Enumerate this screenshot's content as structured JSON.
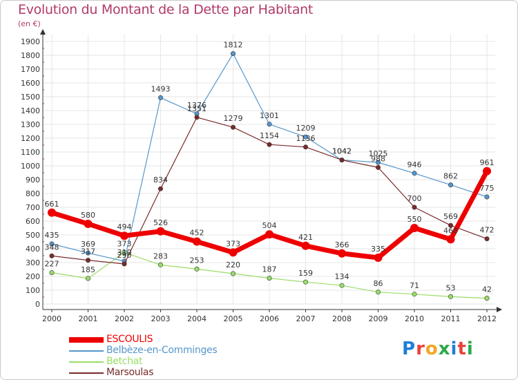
{
  "title": "Evolution du Montant de la Dette par Habitant",
  "subtitle": "(en €)",
  "logo": "Proxiti",
  "chart_data": {
    "type": "line",
    "x": [
      "2000",
      "2001",
      "2002",
      "2003",
      "2004",
      "2005",
      "2006",
      "2007",
      "2008",
      "2009",
      "2010",
      "2011",
      "2012"
    ],
    "ylim": [
      0,
      1900
    ],
    "yticks": [
      0,
      100,
      200,
      300,
      400,
      500,
      600,
      700,
      800,
      900,
      1000,
      1100,
      1200,
      1300,
      1400,
      1500,
      1600,
      1700,
      1800,
      1900
    ],
    "grid": true,
    "legend_position": "bottom-left",
    "series": [
      {
        "name": "ESCOULIS",
        "color": "#ee0000",
        "values": [
          661,
          580,
          494,
          526,
          452,
          373,
          504,
          421,
          366,
          335,
          550,
          468,
          961
        ]
      },
      {
        "name": "Belbèze-en-Comminges",
        "color": "#5596cc",
        "values": [
          435,
          369,
          310,
          1493,
          1376,
          1812,
          1301,
          1209,
          1042,
          1025,
          946,
          862,
          775
        ]
      },
      {
        "name": "Betchat",
        "color": "#99dd66",
        "values": [
          227,
          185,
          373,
          283,
          253,
          220,
          187,
          159,
          134,
          86,
          71,
          53,
          42
        ]
      },
      {
        "name": "Marsoulas",
        "color": "#7a2a2a",
        "values": [
          348,
          317,
          290,
          834,
          1351,
          1279,
          1154,
          1136,
          1042,
          988,
          700,
          569,
          472
        ]
      }
    ]
  }
}
